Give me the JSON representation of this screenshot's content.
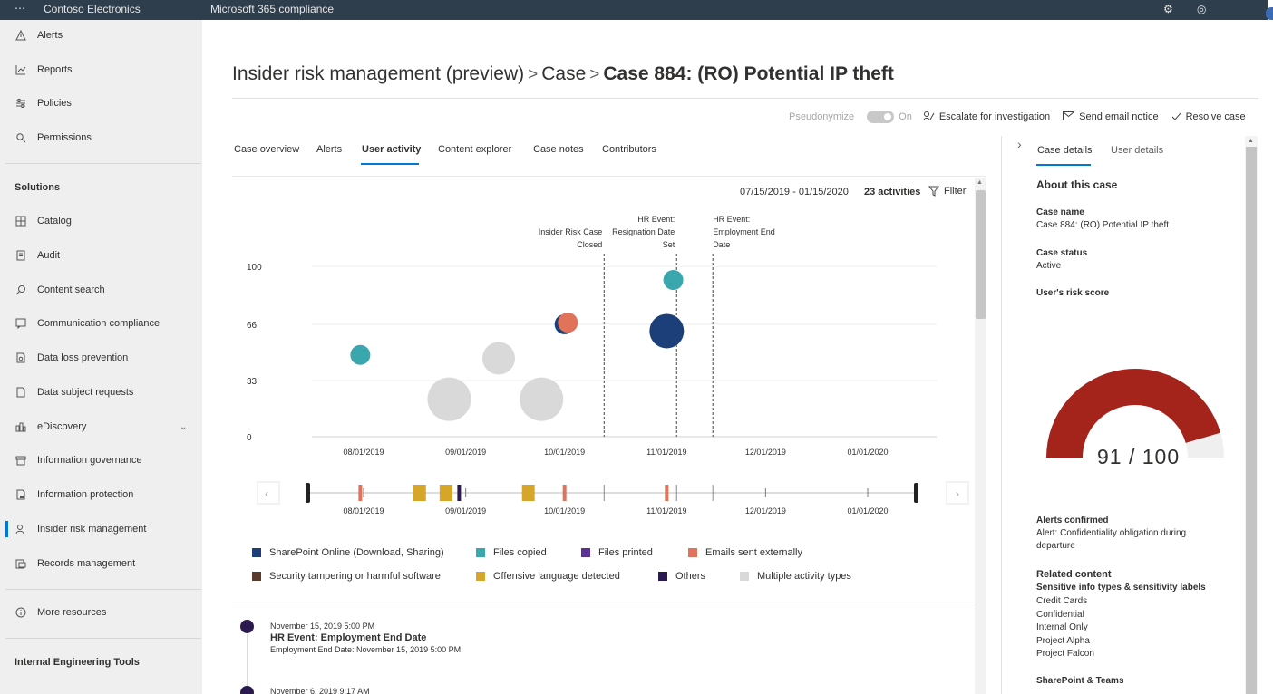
{
  "topbar": {
    "org_name": "Contoso Electronics",
    "product_name": "Microsoft 365 compliance",
    "icons": [
      "waffle-icon",
      "gear-icon",
      "help-icon"
    ]
  },
  "sidebar": {
    "items": [
      {
        "label": "Alerts",
        "icon": "alert-icon"
      },
      {
        "label": "Reports",
        "icon": "chart-icon"
      },
      {
        "label": "Policies",
        "icon": "policy-icon"
      },
      {
        "label": "Permissions",
        "icon": "key-icon"
      }
    ],
    "solutions_heading": "Solutions",
    "solutions": [
      {
        "label": "Catalog",
        "icon": "catalog-icon"
      },
      {
        "label": "Audit",
        "icon": "audit-icon"
      },
      {
        "label": "Content search",
        "icon": "search-icon"
      },
      {
        "label": "Communication compliance",
        "icon": "chat-icon"
      },
      {
        "label": "Data loss prevention",
        "icon": "shield-doc-icon"
      },
      {
        "label": "Data subject requests",
        "icon": "doc-icon"
      },
      {
        "label": "eDiscovery",
        "icon": "scales-icon"
      },
      {
        "label": "Information governance",
        "icon": "archive-icon"
      },
      {
        "label": "Information protection",
        "icon": "lock-doc-icon"
      },
      {
        "label": "Insider risk management",
        "icon": "person-icon"
      },
      {
        "label": "Records management",
        "icon": "records-icon"
      }
    ],
    "more_resources": "More resources",
    "internal_heading": "Internal Engineering Tools"
  },
  "header": {
    "crumb1": "Insider risk management (preview)",
    "sep": ">",
    "crumb2": "Case",
    "current": "Case 884: (RO) Potential IP theft"
  },
  "commandbar": {
    "pseudonymize": "Pseudonymize",
    "toggle_state": "On",
    "escalate": "Escalate for investigation",
    "email": "Send email notice",
    "resolve": "Resolve case"
  },
  "tabs": [
    "Case overview",
    "Alerts",
    "User activity",
    "Content explorer",
    "Case notes",
    "Contributors"
  ],
  "selected_tab": "User activity",
  "activity_header": {
    "date_range": "07/15/2019 - 01/15/2020",
    "count": "23 activities",
    "filter": "Filter"
  },
  "chart_data": {
    "type": "scatter",
    "y_ticks": [
      "100",
      "66",
      "33",
      "0"
    ],
    "ylim": [
      0,
      100
    ],
    "x_ticks": [
      "08/01/2019",
      "09/01/2019",
      "10/01/2019",
      "11/01/2019",
      "12/01/2019",
      "01/01/2020"
    ],
    "events": [
      {
        "label_lines": [
          "Insider Risk Case",
          "Closed"
        ],
        "date": "2019-10-13"
      },
      {
        "label_lines": [
          "HR Event:",
          "Resignation Date",
          "Set"
        ],
        "date": "2019-11-04"
      },
      {
        "label_lines": [
          "HR Event:",
          "Employment End",
          "Date"
        ],
        "date": "2019-11-15"
      }
    ],
    "points": [
      {
        "date": "2019-07-31",
        "score": 48,
        "size": 1,
        "category": "Files copied"
      },
      {
        "date": "2019-08-27",
        "score": 22,
        "size": 3,
        "category": "Multiple activity types"
      },
      {
        "date": "2019-09-11",
        "score": 46,
        "size": 2,
        "category": "Multiple activity types"
      },
      {
        "date": "2019-09-24",
        "score": 22,
        "size": 3,
        "category": "Multiple activity types"
      },
      {
        "date": "2019-10-01",
        "score": 66,
        "size": 1,
        "category": "SharePoint Online (Download, Sharing)"
      },
      {
        "date": "2019-10-02",
        "score": 67,
        "size": 1,
        "category": "Emails sent externally"
      },
      {
        "date": "2019-11-01",
        "score": 62,
        "size": 2,
        "category": "SharePoint Online (Download, Sharing)"
      },
      {
        "date": "2019-11-03",
        "score": 92,
        "size": 1,
        "category": "Files copied"
      }
    ],
    "timeline_marks": [
      {
        "date": "2019-07-31",
        "category": "Emails sent externally"
      },
      {
        "date": "2019-08-18",
        "category": "Offensive language detected"
      },
      {
        "date": "2019-08-26",
        "category": "Offensive language detected"
      },
      {
        "date": "2019-08-30",
        "category": "Others"
      },
      {
        "date": "2019-09-20",
        "category": "Offensive language detected"
      },
      {
        "date": "2019-10-01",
        "category": "Emails sent externally"
      },
      {
        "date": "2019-11-01",
        "category": "Emails sent externally"
      }
    ]
  },
  "legend": [
    {
      "label": "SharePoint Online (Download, Sharing)",
      "color": "#1c3f7a"
    },
    {
      "label": "Files copied",
      "color": "#3aa6ad"
    },
    {
      "label": "Files printed",
      "color": "#5a2f97"
    },
    {
      "label": "Emails sent externally",
      "color": "#e0735a"
    },
    {
      "label": "Security tampering or harmful software",
      "color": "#5b3a2e"
    },
    {
      "label": "Offensive language detected",
      "color": "#d6a62b"
    },
    {
      "label": "Others",
      "color": "#2b1a4f"
    },
    {
      "label": "Multiple activity types",
      "color": "#d9d9d9"
    }
  ],
  "activity_list": [
    {
      "date": "November 15, 2019 5:00 PM",
      "title": "HR Event: Employment End Date",
      "desc": "Employment End Date: November 15, 2019 5:00 PM"
    },
    {
      "date": "November 6, 2019 9:17 AM",
      "title": "",
      "desc": ""
    }
  ],
  "right_panel": {
    "tabs": [
      "Case details",
      "User details"
    ],
    "about": "About this case",
    "case_name_label": "Case name",
    "case_name": "Case 884: (RO) Potential IP theft",
    "case_status_label": "Case status",
    "case_status": "Active",
    "risk_score_label": "User's risk score",
    "risk_score": 91,
    "risk_score_text": "91 / 100",
    "alerts_confirmed_label": "Alerts confirmed",
    "alerts_confirmed_line1": "Alert: Confidentiality obligation during",
    "alerts_confirmed_line2": "departure",
    "related_content": "Related content",
    "sensitive_label": "Sensitive info types & sensitivity labels",
    "sensitive_items": [
      "Credit Cards",
      "Confidential",
      "Internal Only",
      "Project Alpha",
      "Project Falcon"
    ],
    "sharepoint_label": "SharePoint & Teams",
    "gauge_color": "#a4241c",
    "gauge_track": "#efefef"
  }
}
